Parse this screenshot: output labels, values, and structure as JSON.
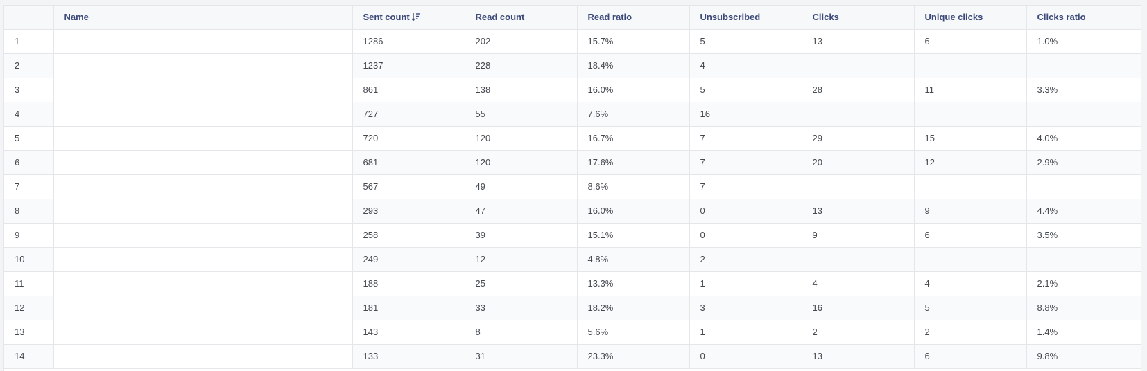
{
  "table": {
    "columns": [
      {
        "key": "index",
        "label": ""
      },
      {
        "key": "name",
        "label": "Name"
      },
      {
        "key": "sent_count",
        "label": "Sent count",
        "sort_icon": "sort-descending-icon"
      },
      {
        "key": "read_count",
        "label": "Read count"
      },
      {
        "key": "read_ratio",
        "label": "Read ratio"
      },
      {
        "key": "unsubscribed",
        "label": "Unsubscribed"
      },
      {
        "key": "clicks",
        "label": "Clicks"
      },
      {
        "key": "unique_clicks",
        "label": "Unique clicks"
      },
      {
        "key": "clicks_ratio",
        "label": "Clicks ratio"
      }
    ],
    "rows": [
      {
        "index": "1",
        "name": "",
        "sent_count": "1286",
        "read_count": "202",
        "read_ratio": "15.7%",
        "unsubscribed": "5",
        "clicks": "13",
        "unique_clicks": "6",
        "clicks_ratio": "1.0%"
      },
      {
        "index": "2",
        "name": "",
        "sent_count": "1237",
        "read_count": "228",
        "read_ratio": "18.4%",
        "unsubscribed": "4",
        "clicks": "",
        "unique_clicks": "",
        "clicks_ratio": ""
      },
      {
        "index": "3",
        "name": "",
        "sent_count": "861",
        "read_count": "138",
        "read_ratio": "16.0%",
        "unsubscribed": "5",
        "clicks": "28",
        "unique_clicks": "11",
        "clicks_ratio": "3.3%"
      },
      {
        "index": "4",
        "name": "",
        "sent_count": "727",
        "read_count": "55",
        "read_ratio": "7.6%",
        "unsubscribed": "16",
        "clicks": "",
        "unique_clicks": "",
        "clicks_ratio": ""
      },
      {
        "index": "5",
        "name": "",
        "sent_count": "720",
        "read_count": "120",
        "read_ratio": "16.7%",
        "unsubscribed": "7",
        "clicks": "29",
        "unique_clicks": "15",
        "clicks_ratio": "4.0%"
      },
      {
        "index": "6",
        "name": "",
        "sent_count": "681",
        "read_count": "120",
        "read_ratio": "17.6%",
        "unsubscribed": "7",
        "clicks": "20",
        "unique_clicks": "12",
        "clicks_ratio": "2.9%"
      },
      {
        "index": "7",
        "name": "",
        "sent_count": "567",
        "read_count": "49",
        "read_ratio": "8.6%",
        "unsubscribed": "7",
        "clicks": "",
        "unique_clicks": "",
        "clicks_ratio": ""
      },
      {
        "index": "8",
        "name": "",
        "sent_count": "293",
        "read_count": "47",
        "read_ratio": "16.0%",
        "unsubscribed": "0",
        "clicks": "13",
        "unique_clicks": "9",
        "clicks_ratio": "4.4%"
      },
      {
        "index": "9",
        "name": "",
        "sent_count": "258",
        "read_count": "39",
        "read_ratio": "15.1%",
        "unsubscribed": "0",
        "clicks": "9",
        "unique_clicks": "6",
        "clicks_ratio": "3.5%"
      },
      {
        "index": "10",
        "name": "",
        "sent_count": "249",
        "read_count": "12",
        "read_ratio": "4.8%",
        "unsubscribed": "2",
        "clicks": "",
        "unique_clicks": "",
        "clicks_ratio": ""
      },
      {
        "index": "11",
        "name": "",
        "sent_count": "188",
        "read_count": "25",
        "read_ratio": "13.3%",
        "unsubscribed": "1",
        "clicks": "4",
        "unique_clicks": "4",
        "clicks_ratio": "2.1%"
      },
      {
        "index": "12",
        "name": "",
        "sent_count": "181",
        "read_count": "33",
        "read_ratio": "18.2%",
        "unsubscribed": "3",
        "clicks": "16",
        "unique_clicks": "5",
        "clicks_ratio": "8.8%"
      },
      {
        "index": "13",
        "name": "",
        "sent_count": "143",
        "read_count": "8",
        "read_ratio": "5.6%",
        "unsubscribed": "1",
        "clicks": "2",
        "unique_clicks": "2",
        "clicks_ratio": "1.4%"
      },
      {
        "index": "14",
        "name": "",
        "sent_count": "133",
        "read_count": "31",
        "read_ratio": "23.3%",
        "unsubscribed": "0",
        "clicks": "13",
        "unique_clicks": "6",
        "clicks_ratio": "9.8%"
      }
    ]
  },
  "colors": {
    "header_text": "#3c4a7a",
    "cell_text": "#444950",
    "border": "#e4e6ea"
  }
}
